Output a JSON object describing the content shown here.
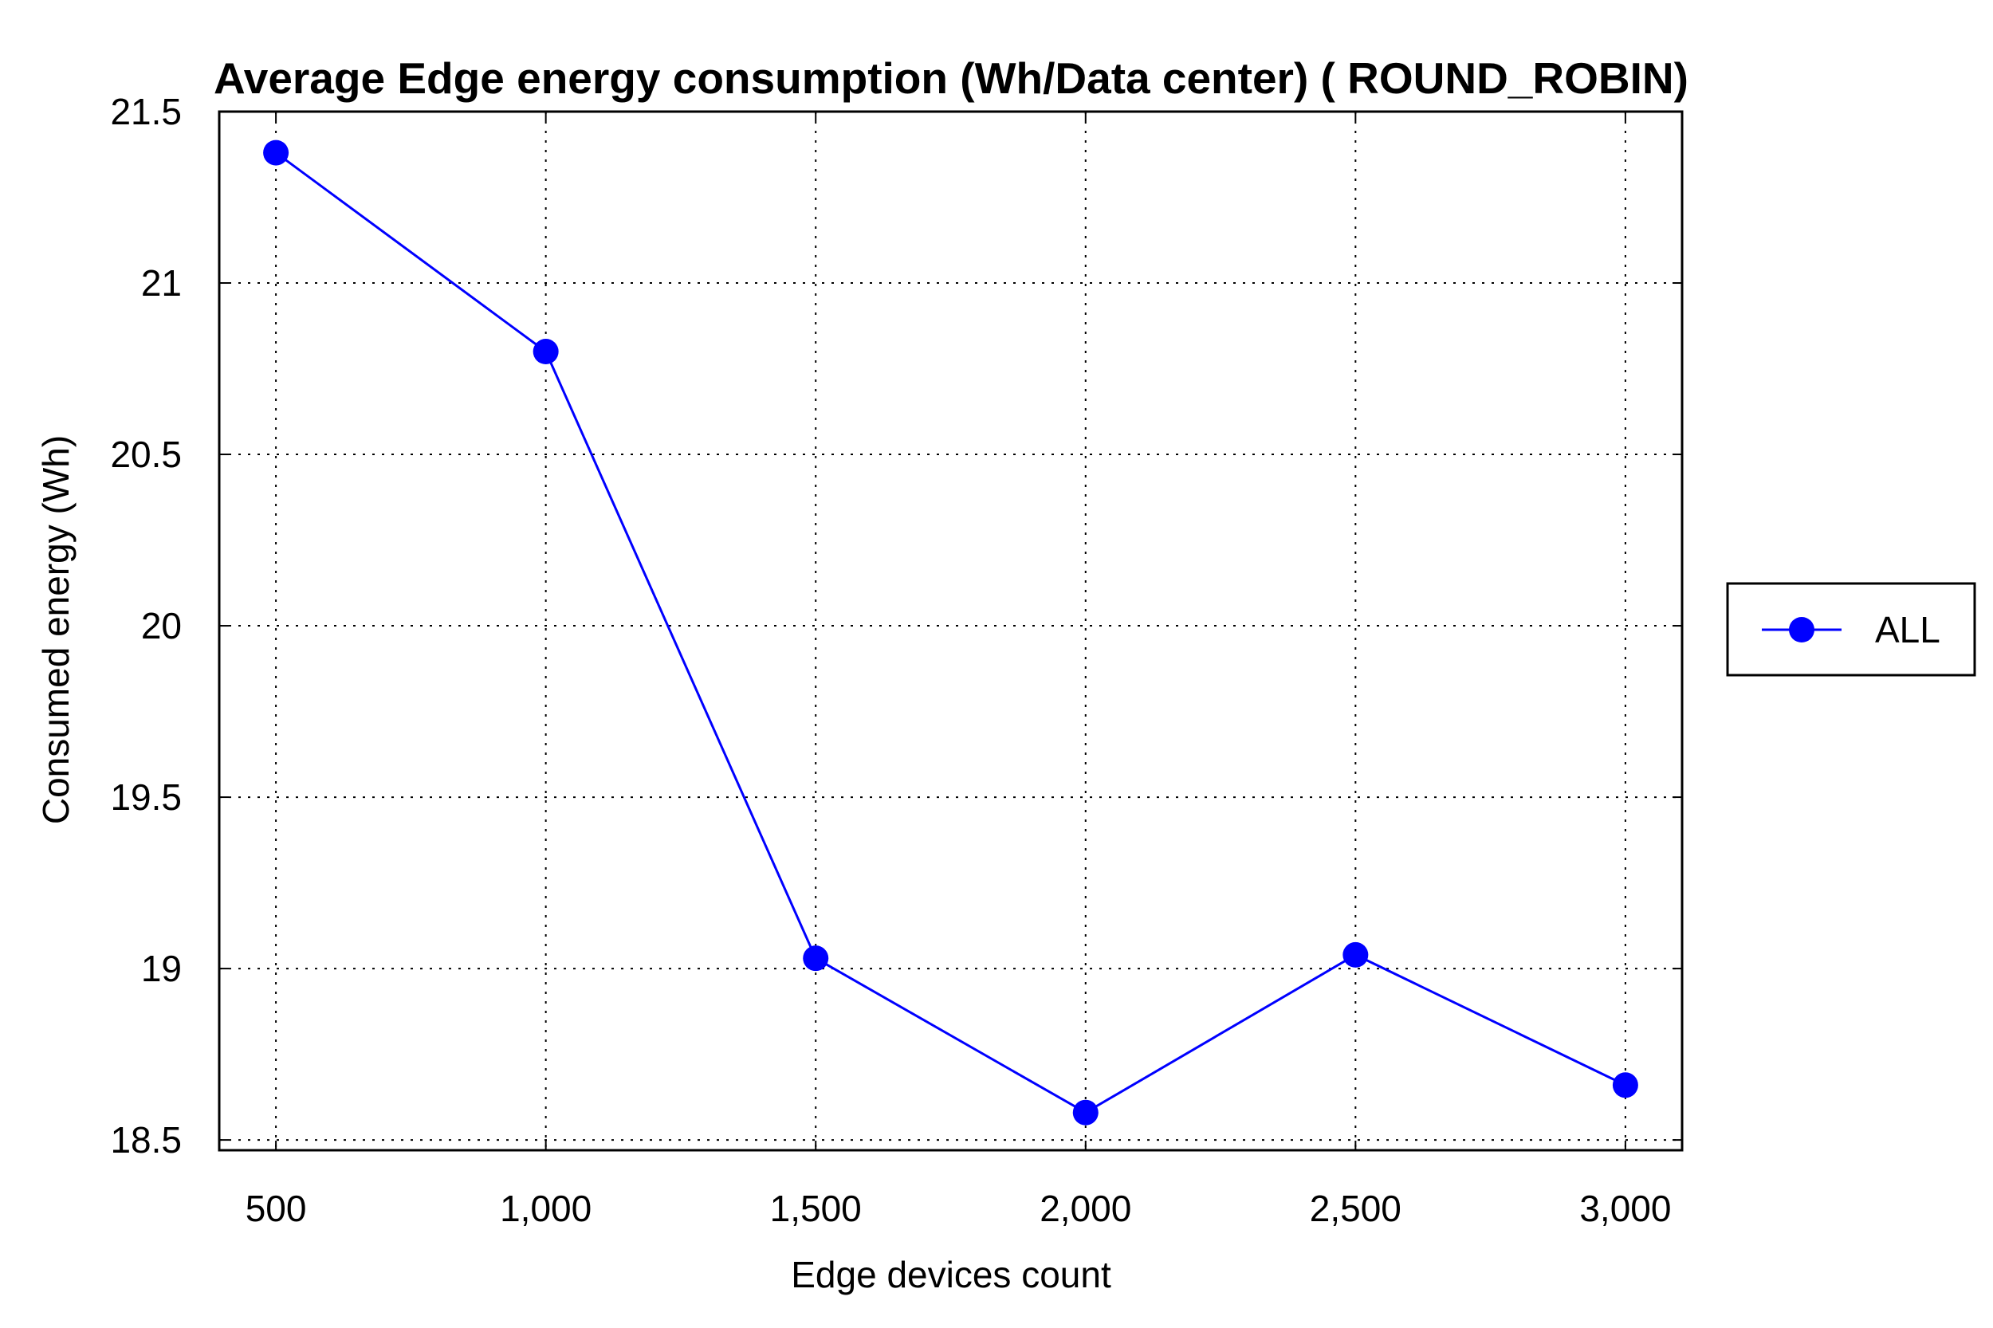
{
  "chart_data": {
    "type": "line",
    "title": "Average Edge energy consumption (Wh/Data center) ( ROUND_ROBIN)",
    "xlabel": "Edge devices count",
    "ylabel": "Consumed energy (Wh)",
    "x": [
      500,
      1000,
      1500,
      2000,
      2500,
      3000
    ],
    "x_tick_labels": [
      "500",
      "1,000",
      "1,500",
      "2,000",
      "2,500",
      "3,000"
    ],
    "xlim": [
      395,
      3105
    ],
    "y_ticks": [
      18.5,
      19,
      19.5,
      20,
      20.5,
      21,
      21.5
    ],
    "y_tick_labels": [
      "18.5",
      "19",
      "19.5",
      "20",
      "20.5",
      "21",
      "21.5"
    ],
    "ylim": [
      18.47,
      21.5
    ],
    "grid": true,
    "legend_position": "right",
    "series": [
      {
        "name": "ALL",
        "color": "#0000ff",
        "marker": "circle",
        "values": [
          21.38,
          20.8,
          19.03,
          18.58,
          19.04,
          18.66
        ]
      }
    ]
  }
}
